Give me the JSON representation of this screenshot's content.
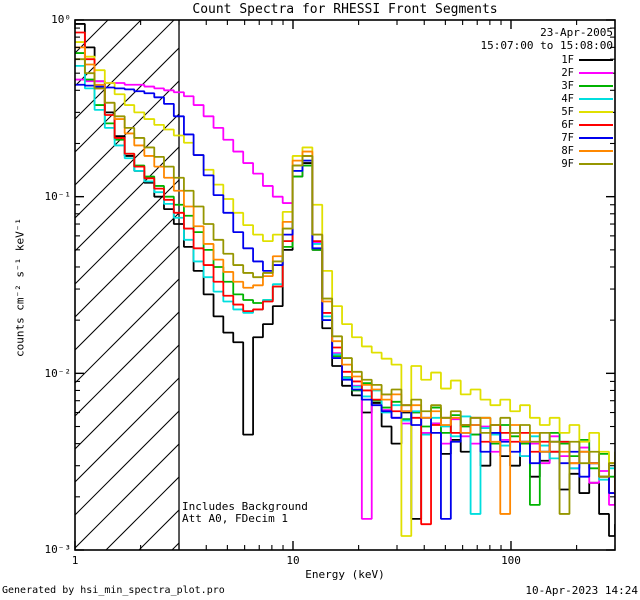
{
  "header": {
    "title": "Count Spectra for RHESSI Front Segments"
  },
  "observation": {
    "date": "23-Apr-2005",
    "time_range": "15:07:00 to 15:08:00"
  },
  "annotations": {
    "background": "Includes Background",
    "attenuator": "Att A0, FDecim 1"
  },
  "footer": {
    "generated_by": "Generated by hsi_min_spectra_plot.pro",
    "generated_on": "10-Apr-2023 14:24"
  },
  "axes": {
    "xlabel": "Energy (keV)",
    "ylabel": "counts cm⁻² s⁻¹ keV⁻¹",
    "xlim": [
      1,
      300
    ],
    "ylim": [
      0.001,
      1
    ],
    "x_scale": "log",
    "y_scale": "log",
    "x_ticks": [
      {
        "value": 1,
        "label": "1"
      },
      {
        "value": 10,
        "label": "10"
      },
      {
        "value": 100,
        "label": "100"
      }
    ],
    "y_ticks": [
      {
        "value": 1,
        "label": "10⁰"
      },
      {
        "value": 0.1,
        "label": "10⁻¹"
      },
      {
        "value": 0.01,
        "label": "10⁻²"
      },
      {
        "value": 0.001,
        "label": "10⁻³"
      }
    ]
  },
  "chart_data": {
    "type": "line",
    "subtype": "step-histogram",
    "title": "Count Spectra for RHESSI Front Segments",
    "xlabel": "Energy (keV)",
    "ylabel": "counts cm⁻² s⁻¹ keV⁻¹",
    "xlim": [
      1,
      300
    ],
    "ylim": [
      0.001,
      1
    ],
    "legend_position": "top-right",
    "grid": false,
    "hatch_region": {
      "x_min": 1,
      "x_max": 3,
      "style": "diagonal-hatch"
    },
    "x": [
      1.0,
      1.11,
      1.23,
      1.37,
      1.52,
      1.69,
      1.87,
      2.08,
      2.31,
      2.56,
      2.84,
      3.16,
      3.5,
      3.89,
      4.32,
      4.79,
      5.32,
      5.91,
      6.56,
      7.28,
      8.08,
      8.97,
      9.96,
      11.05,
      12.27,
      13.62,
      15.12,
      16.79,
      18.64,
      20.69,
      22.97,
      25.5,
      28.31,
      31.42,
      34.88,
      38.72,
      42.98,
      47.71,
      52.97,
      58.8,
      65.27,
      72.46,
      80.43,
      89.29,
      99.11,
      110.02,
      122.13,
      135.57,
      150.49,
      167.05,
      185.44,
      205.84,
      228.5,
      253.65,
      281.57,
      300.0
    ],
    "series": [
      {
        "name": "1F",
        "color": "#000000",
        "values": [
          0.95,
          0.7,
          0.45,
          0.3,
          0.22,
          0.17,
          0.14,
          0.12,
          0.1,
          0.085,
          0.07,
          0.052,
          0.038,
          0.028,
          0.021,
          0.017,
          0.015,
          0.0045,
          0.016,
          0.019,
          0.024,
          0.05,
          0.13,
          0.155,
          0.05,
          0.018,
          0.011,
          0.0085,
          0.0075,
          0.006,
          0.0068,
          0.005,
          0.004,
          0.006,
          0.0015,
          0.0045,
          0.0052,
          0.0035,
          0.0042,
          0.0036,
          0.0045,
          0.003,
          0.0046,
          0.0034,
          0.003,
          0.0041,
          0.0026,
          0.0032,
          0.0036,
          0.0022,
          0.0027,
          0.0021,
          0.0024,
          0.0016,
          0.0012,
          0.0014
        ]
      },
      {
        "name": "2F",
        "color": "#ff00ff",
        "values": [
          0.46,
          0.45,
          0.45,
          0.44,
          0.44,
          0.43,
          0.43,
          0.42,
          0.41,
          0.4,
          0.39,
          0.37,
          0.33,
          0.285,
          0.245,
          0.21,
          0.18,
          0.155,
          0.135,
          0.115,
          0.1,
          0.092,
          0.13,
          0.15,
          0.055,
          0.022,
          0.013,
          0.0095,
          0.0085,
          0.0015,
          0.007,
          0.0062,
          0.0056,
          0.0052,
          0.006,
          0.0046,
          0.0052,
          0.004,
          0.0055,
          0.0044,
          0.004,
          0.005,
          0.0036,
          0.0042,
          0.0046,
          0.0034,
          0.004,
          0.0031,
          0.0044,
          0.0034,
          0.0029,
          0.0038,
          0.0024,
          0.0028,
          0.0018,
          0.0022
        ]
      },
      {
        "name": "3F",
        "color": "#00b300",
        "values": [
          0.65,
          0.46,
          0.33,
          0.26,
          0.21,
          0.175,
          0.15,
          0.13,
          0.115,
          0.1,
          0.09,
          0.078,
          0.063,
          0.05,
          0.04,
          0.033,
          0.028,
          0.026,
          0.025,
          0.026,
          0.031,
          0.052,
          0.13,
          0.15,
          0.05,
          0.02,
          0.0125,
          0.0095,
          0.008,
          0.0088,
          0.007,
          0.0064,
          0.0069,
          0.0055,
          0.006,
          0.005,
          0.0064,
          0.0046,
          0.0058,
          0.005,
          0.0045,
          0.0056,
          0.004,
          0.0051,
          0.0044,
          0.004,
          0.0018,
          0.0036,
          0.0046,
          0.004,
          0.0034,
          0.0042,
          0.0029,
          0.0035,
          0.0026,
          0.003
        ]
      },
      {
        "name": "4F",
        "color": "#00dede",
        "values": [
          0.55,
          0.41,
          0.31,
          0.245,
          0.195,
          0.165,
          0.14,
          0.122,
          0.106,
          0.091,
          0.076,
          0.057,
          0.043,
          0.035,
          0.029,
          0.0255,
          0.023,
          0.022,
          0.023,
          0.026,
          0.032,
          0.056,
          0.14,
          0.16,
          0.054,
          0.021,
          0.0128,
          0.0094,
          0.0084,
          0.0074,
          0.008,
          0.006,
          0.0066,
          0.0054,
          0.0061,
          0.0045,
          0.0056,
          0.005,
          0.0044,
          0.0057,
          0.0016,
          0.0049,
          0.0045,
          0.0039,
          0.0046,
          0.0034,
          0.0044,
          0.0039,
          0.0033,
          0.0041,
          0.0029,
          0.0036,
          0.0031,
          0.0025,
          0.0029,
          0.0024
        ]
      },
      {
        "name": "5F",
        "color": "#e0e000",
        "values": [
          0.75,
          0.62,
          0.52,
          0.44,
          0.38,
          0.33,
          0.3,
          0.275,
          0.255,
          0.24,
          0.222,
          0.202,
          0.172,
          0.142,
          0.117,
          0.097,
          0.081,
          0.069,
          0.061,
          0.056,
          0.061,
          0.082,
          0.17,
          0.19,
          0.09,
          0.038,
          0.024,
          0.019,
          0.016,
          0.0142,
          0.0131,
          0.0121,
          0.0112,
          0.0012,
          0.011,
          0.0092,
          0.0101,
          0.0082,
          0.0091,
          0.0076,
          0.0081,
          0.0071,
          0.0066,
          0.0071,
          0.0061,
          0.0066,
          0.0056,
          0.0051,
          0.0056,
          0.0046,
          0.0051,
          0.0041,
          0.0046,
          0.0036,
          0.0031,
          0.0036
        ]
      },
      {
        "name": "6F",
        "color": "#ff0000",
        "values": [
          0.85,
          0.6,
          0.41,
          0.29,
          0.215,
          0.175,
          0.148,
          0.127,
          0.111,
          0.096,
          0.081,
          0.066,
          0.051,
          0.041,
          0.033,
          0.0275,
          0.0245,
          0.0225,
          0.023,
          0.0255,
          0.031,
          0.056,
          0.15,
          0.17,
          0.056,
          0.022,
          0.014,
          0.0102,
          0.009,
          0.008,
          0.0071,
          0.0076,
          0.0061,
          0.0066,
          0.0056,
          0.0014,
          0.0051,
          0.0056,
          0.0046,
          0.0051,
          0.0056,
          0.0041,
          0.0051,
          0.0046,
          0.0041,
          0.0046,
          0.0036,
          0.0041,
          0.0036,
          0.0041,
          0.0031,
          0.0036,
          0.0031,
          0.0026,
          0.0021,
          0.0026
        ]
      },
      {
        "name": "7F",
        "color": "#0000ee",
        "values": [
          0.43,
          0.425,
          0.42,
          0.415,
          0.41,
          0.405,
          0.395,
          0.385,
          0.365,
          0.335,
          0.285,
          0.225,
          0.172,
          0.132,
          0.102,
          0.081,
          0.063,
          0.051,
          0.043,
          0.038,
          0.041,
          0.061,
          0.14,
          0.16,
          0.051,
          0.02,
          0.0122,
          0.0092,
          0.0081,
          0.0071,
          0.0066,
          0.0061,
          0.0056,
          0.0061,
          0.0051,
          0.0056,
          0.0046,
          0.0015,
          0.0041,
          0.0046,
          0.0051,
          0.0036,
          0.0046,
          0.0041,
          0.0036,
          0.0041,
          0.0031,
          0.0036,
          0.0041,
          0.0031,
          0.0036,
          0.0026,
          0.0031,
          0.0026,
          0.0021,
          0.0026
        ]
      },
      {
        "name": "8F",
        "color": "#ff8800",
        "values": [
          0.7,
          0.56,
          0.43,
          0.34,
          0.275,
          0.228,
          0.195,
          0.17,
          0.148,
          0.128,
          0.108,
          0.088,
          0.068,
          0.054,
          0.044,
          0.0375,
          0.033,
          0.0305,
          0.0315,
          0.0355,
          0.046,
          0.072,
          0.16,
          0.18,
          0.061,
          0.0255,
          0.0152,
          0.0112,
          0.0096,
          0.0086,
          0.0081,
          0.0071,
          0.0076,
          0.0061,
          0.0066,
          0.0056,
          0.0061,
          0.0051,
          0.0056,
          0.0046,
          0.0051,
          0.0056,
          0.0041,
          0.0016,
          0.0051,
          0.0041,
          0.0046,
          0.0036,
          0.0041,
          0.0036,
          0.0031,
          0.0036,
          0.0031,
          0.0026,
          0.0031,
          0.0021
        ]
      },
      {
        "name": "9F",
        "color": "#969600",
        "values": [
          0.6,
          0.5,
          0.41,
          0.34,
          0.285,
          0.245,
          0.215,
          0.19,
          0.168,
          0.148,
          0.128,
          0.108,
          0.088,
          0.07,
          0.057,
          0.0475,
          0.041,
          0.037,
          0.035,
          0.037,
          0.043,
          0.066,
          0.15,
          0.17,
          0.061,
          0.0265,
          0.0162,
          0.0122,
          0.0102,
          0.0092,
          0.0086,
          0.0076,
          0.0081,
          0.0066,
          0.0071,
          0.0061,
          0.0066,
          0.0056,
          0.0061,
          0.0051,
          0.0056,
          0.0046,
          0.0051,
          0.0056,
          0.0046,
          0.0051,
          0.0041,
          0.0046,
          0.0041,
          0.0016,
          0.0041,
          0.0031,
          0.0036,
          0.0026,
          0.0031,
          0.0026
        ]
      }
    ]
  }
}
